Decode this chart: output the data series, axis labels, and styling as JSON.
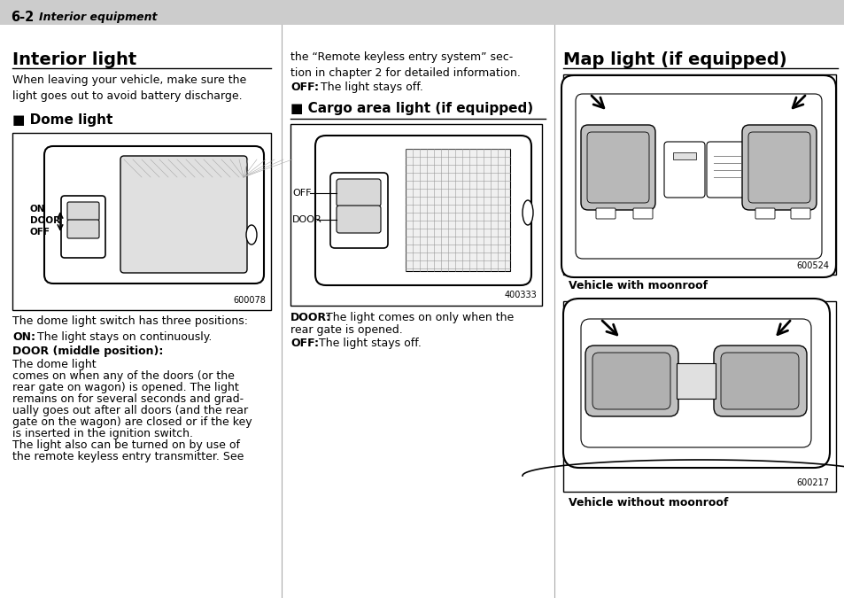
{
  "bg_color": "#ffffff",
  "header_bg": "#cccccc",
  "header_text": "6-2",
  "header_italic": "Interior equipment",
  "section1_title": "Interior light",
  "section1_body1": "When leaving your vehicle, make sure the\nlight goes out to avoid battery discharge.",
  "subsection1_title": "■ Dome light",
  "dome_img_code": "600078",
  "dome_body": "The dome light switch has three positions:",
  "col2_text1": "the “Remote keyless entry system” sec-\ntion in chapter 2 for detailed information.",
  "col2_off_bold": "OFF:",
  "col2_off_text": " The light stays off.",
  "subsection2_title": "■ Cargo area light (if equipped)",
  "cargo_img_code": "400333",
  "section3_title": "Map light (if equipped)",
  "map_img1_code": "600524",
  "map_img1_caption": "Vehicle with moonroof",
  "map_img2_code": "600217",
  "map_img2_caption": "Vehicle without moonroof"
}
